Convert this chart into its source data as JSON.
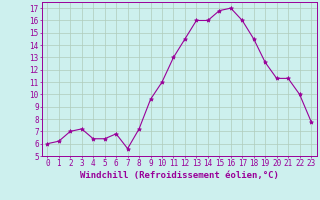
{
  "x": [
    0,
    1,
    2,
    3,
    4,
    5,
    6,
    7,
    8,
    9,
    10,
    11,
    12,
    13,
    14,
    15,
    16,
    17,
    18,
    19,
    20,
    21,
    22,
    23
  ],
  "y": [
    6.0,
    6.2,
    7.0,
    7.2,
    6.4,
    6.4,
    6.8,
    5.6,
    7.2,
    9.6,
    11.0,
    13.0,
    14.5,
    16.0,
    16.0,
    16.8,
    17.0,
    16.0,
    14.5,
    12.6,
    11.3,
    11.3,
    10.0,
    7.8
  ],
  "line_color": "#990099",
  "marker": "*",
  "marker_size": 3,
  "background_color": "#cdf0ee",
  "grid_color": "#b0ccbb",
  "xlabel": "Windchill (Refroidissement éolien,°C)",
  "xlabel_fontsize": 6.5,
  "tick_fontsize": 5.5,
  "ytick_fontsize": 5.5,
  "ylim": [
    5,
    17.5
  ],
  "xlim": [
    -0.5,
    23.5
  ],
  "yticks": [
    5,
    6,
    7,
    8,
    9,
    10,
    11,
    12,
    13,
    14,
    15,
    16,
    17
  ],
  "xticks": [
    0,
    1,
    2,
    3,
    4,
    5,
    6,
    7,
    8,
    9,
    10,
    11,
    12,
    13,
    14,
    15,
    16,
    17,
    18,
    19,
    20,
    21,
    22,
    23
  ]
}
